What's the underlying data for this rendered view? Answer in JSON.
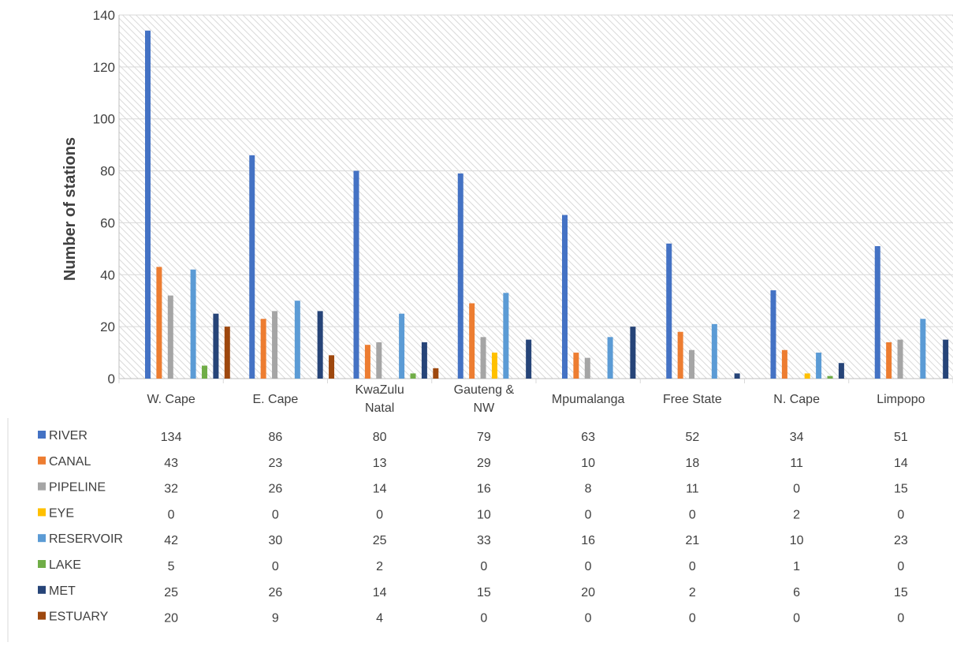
{
  "chart_data": {
    "type": "bar",
    "ylabel": "Number of stations",
    "ylim": [
      0,
      140
    ],
    "ytick_values": [
      0,
      20,
      40,
      60,
      80,
      100,
      120,
      140
    ],
    "ytick_labels": [
      "0",
      "20",
      "40",
      "60",
      "80",
      "100",
      "120",
      "140"
    ],
    "grid": "horizontal",
    "plot_background": "diagonal-hatch",
    "legend_placement": "data-table-below",
    "categories": [
      [
        "W. Cape"
      ],
      [
        "E. Cape"
      ],
      [
        "KwaZulu",
        "Natal"
      ],
      [
        "Gauteng &",
        "NW"
      ],
      [
        "Mpumalanga"
      ],
      [
        "Free State"
      ],
      [
        "N. Cape"
      ],
      [
        "Limpopo"
      ]
    ],
    "series": [
      {
        "name": "RIVER",
        "color": "#4472C4",
        "values": [
          134,
          86,
          80,
          79,
          63,
          52,
          34,
          51
        ]
      },
      {
        "name": "CANAL",
        "color": "#ED7D31",
        "values": [
          43,
          23,
          13,
          29,
          10,
          18,
          11,
          14
        ]
      },
      {
        "name": "PIPELINE",
        "color": "#A5A5A5",
        "values": [
          32,
          26,
          14,
          16,
          8,
          11,
          0,
          15
        ]
      },
      {
        "name": "EYE",
        "color": "#FFC000",
        "values": [
          0,
          0,
          0,
          10,
          0,
          0,
          2,
          0
        ]
      },
      {
        "name": "RESERVOIR",
        "color": "#5B9BD5",
        "values": [
          42,
          30,
          25,
          33,
          16,
          21,
          10,
          23
        ]
      },
      {
        "name": "LAKE",
        "color": "#70AD47",
        "values": [
          5,
          0,
          2,
          0,
          0,
          0,
          1,
          0
        ]
      },
      {
        "name": "MET",
        "color": "#264478",
        "values": [
          25,
          26,
          14,
          15,
          20,
          2,
          6,
          15
        ]
      },
      {
        "name": "ESTUARY",
        "color": "#9E480E",
        "values": [
          20,
          9,
          4,
          0,
          0,
          0,
          0,
          0
        ]
      }
    ]
  }
}
